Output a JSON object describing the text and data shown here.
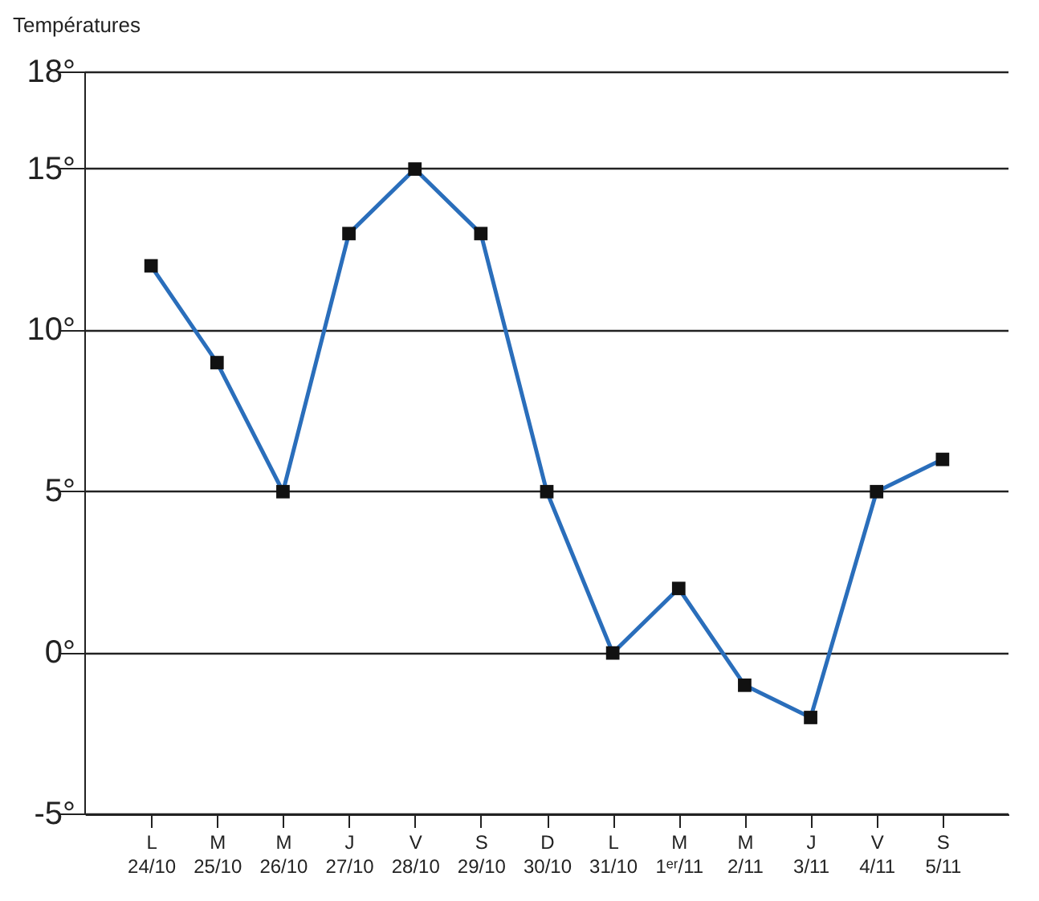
{
  "chart_data": {
    "type": "line",
    "ylabel": "Températures",
    "categories": [
      "L\n24/10",
      "M\n25/10",
      "M\n26/10",
      "J\n27/10",
      "V\n28/10",
      "S\n29/10",
      "D\n30/10",
      "L\n31/10",
      "M\n1ᵉʳ/11",
      "M\n2/11",
      "J\n3/11",
      "V\n4/11",
      "S\n5/11"
    ],
    "series": [
      {
        "color": "#2a6ebb",
        "values": [
          12,
          9,
          5,
          13,
          15,
          13,
          5,
          0,
          2,
          -1,
          -2,
          5,
          6
        ]
      }
    ],
    "ylim": [
      -5,
      18
    ],
    "yticks": [
      {
        "value": -5,
        "label": "-5°"
      },
      {
        "value": 0,
        "label": "0°"
      },
      {
        "value": 5,
        "label": "5°"
      },
      {
        "value": 10,
        "label": "10°"
      },
      {
        "value": 15,
        "label": "15°"
      },
      {
        "value": 18,
        "label": "18°"
      }
    ],
    "grid": "y",
    "marker": "square",
    "line_style": "solid"
  }
}
